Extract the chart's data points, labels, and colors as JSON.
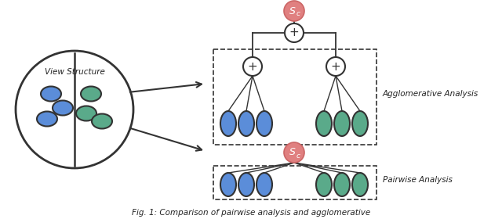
{
  "bg_color": "#ffffff",
  "blue_color": "#5b8dd9",
  "teal_color": "#5aaa8a",
  "red_color": "#e08080",
  "line_color": "#333333",
  "text_color": "#222222",
  "view_structure_label": "View Structure",
  "agglomerative_label": "Agglomerative Analysis",
  "pairwise_label": "Pairwise Analysis",
  "caption": "Fig. 1: Comparison of pairwise analysis and agglomerative"
}
